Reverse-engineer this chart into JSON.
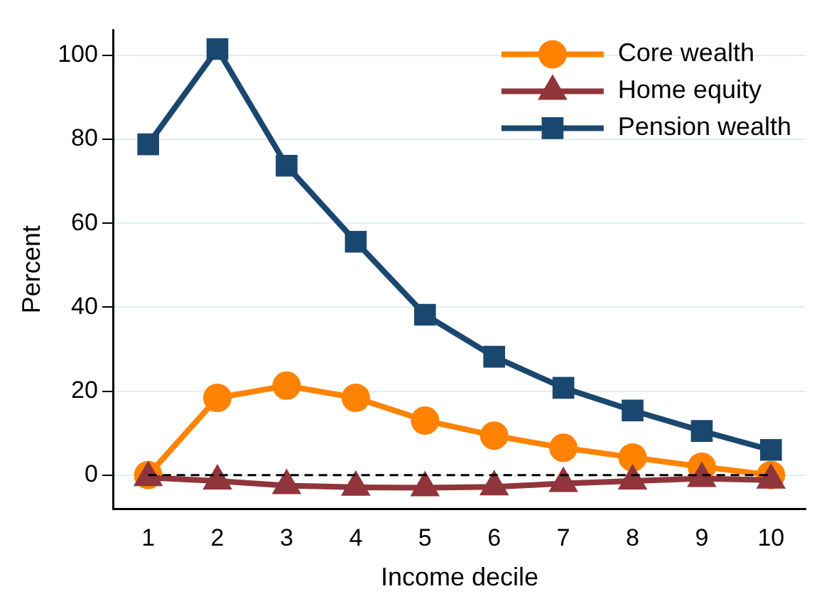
{
  "chart_data": {
    "type": "line",
    "xlabel": "Income decile",
    "ylabel": "Percent",
    "categories": [
      "1",
      "2",
      "3",
      "4",
      "5",
      "6",
      "7",
      "8",
      "9",
      "10"
    ],
    "series": [
      {
        "name": "Core wealth",
        "color": "#ff8300",
        "marker": "circle",
        "values": [
          0,
          18.4,
          21.3,
          18.4,
          13,
          9.4,
          6.5,
          4.2,
          2,
          0
        ]
      },
      {
        "name": "Home equity",
        "color": "#90353b",
        "marker": "triangle",
        "values": [
          -0.6,
          -1.4,
          -2.5,
          -2.9,
          -3,
          -2.8,
          -2,
          -1.4,
          -0.8,
          -1.2
        ]
      },
      {
        "name": "Pension wealth",
        "color": "#1a476f",
        "marker": "square",
        "values": [
          78.8,
          101.5,
          73.7,
          55.6,
          38.2,
          28.2,
          20.8,
          15.4,
          10.5,
          6
        ]
      }
    ],
    "ylim": [
      -8,
      106
    ],
    "yticks": [
      0,
      20,
      40,
      60,
      80,
      100
    ],
    "grid": "y",
    "legend": "top right",
    "ref_lines": [
      {
        "axis": "y",
        "value": 0,
        "color": "#000000",
        "line_style": "dashed"
      }
    ]
  }
}
